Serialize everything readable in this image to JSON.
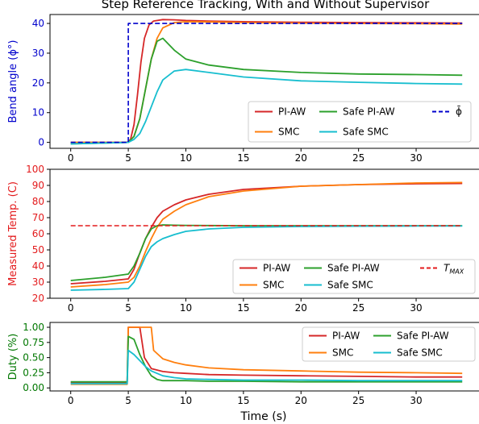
{
  "figure": {
    "title": "Step Reference Tracking, With and Without Supervisor",
    "xlabel": "Time (s)"
  },
  "colors": {
    "pi_aw": "#d62728",
    "smc": "#ff7f0e",
    "safe_pi_aw": "#2ca02c",
    "safe_smc": "#17becf",
    "reference": "#0000cc",
    "tmax": "#e31a1c",
    "ylabel_top": "#0000cc",
    "ylabel_mid": "#e31a1c",
    "ylabel_bot": "#007700"
  },
  "chart_data": [
    {
      "type": "line",
      "ylabel": "Bend angle (ϕ°)",
      "xlim": [
        -1.8,
        35.6
      ],
      "ylim": [
        -2,
        43
      ],
      "xticks": [
        0,
        5,
        10,
        15,
        20,
        25,
        30
      ],
      "yticks": [
        0,
        10,
        20,
        30,
        40
      ],
      "legend_position": "lower-right",
      "series": [
        {
          "name": "PI-AW",
          "color_key": "pi_aw",
          "style": "solid",
          "x": [
            0,
            4.9,
            5.2,
            5.5,
            5.8,
            6.1,
            6.4,
            6.8,
            7.2,
            8,
            9,
            10,
            12,
            15,
            20,
            25,
            30,
            34
          ],
          "y": [
            0,
            0,
            1,
            6,
            16,
            27,
            35,
            39.5,
            40.8,
            41.3,
            41.2,
            41.0,
            40.8,
            40.6,
            40.4,
            40.3,
            40.2,
            40.1
          ]
        },
        {
          "name": "SMC",
          "color_key": "smc",
          "style": "solid",
          "x": [
            0,
            5,
            5.5,
            6,
            6.5,
            7,
            7.5,
            8,
            9,
            10,
            12,
            15,
            20,
            25,
            30,
            34
          ],
          "y": [
            0,
            0,
            2,
            8,
            18,
            28,
            35,
            38.5,
            40.3,
            40.6,
            40.5,
            40.3,
            40.1,
            40.0,
            39.9,
            39.8
          ]
        },
        {
          "name": "Safe PI-AW",
          "color_key": "safe_pi_aw",
          "style": "solid",
          "x": [
            0,
            5,
            5.5,
            6,
            6.5,
            7,
            7.5,
            8,
            9,
            10,
            12,
            15,
            20,
            25,
            30,
            34
          ],
          "y": [
            -0.5,
            0,
            2,
            8,
            18,
            28,
            34,
            35,
            31,
            28,
            26,
            24.5,
            23.5,
            23,
            22.8,
            22.6
          ]
        },
        {
          "name": "Safe SMC",
          "color_key": "safe_smc",
          "style": "solid",
          "x": [
            0,
            5,
            5.5,
            6,
            6.5,
            7,
            7.5,
            8,
            9,
            10,
            12,
            15,
            20,
            25,
            30,
            34
          ],
          "y": [
            -0.5,
            0,
            1,
            3,
            7,
            12,
            17,
            21,
            24,
            24.5,
            23.5,
            22,
            20.7,
            20.2,
            19.8,
            19.6
          ]
        },
        {
          "name": "ϕ̄",
          "color_key": "reference",
          "style": "dashed",
          "x": [
            0,
            5,
            5,
            34
          ],
          "y": [
            0,
            0,
            40,
            40
          ]
        }
      ]
    },
    {
      "type": "line",
      "ylabel": "Measured Temp. (C)",
      "xlim": [
        -1.8,
        35.6
      ],
      "ylim": [
        20,
        100
      ],
      "xticks": [
        0,
        5,
        10,
        15,
        20,
        25,
        30
      ],
      "yticks": [
        20,
        30,
        40,
        50,
        60,
        70,
        80,
        90,
        100
      ],
      "legend_position": "lower-right",
      "series": [
        {
          "name": "PI-AW",
          "color_key": "pi_aw",
          "style": "solid",
          "x": [
            0,
            3,
            5,
            5.5,
            6,
            6.5,
            7,
            7.5,
            8,
            9,
            10,
            12,
            15,
            20,
            25,
            30,
            34
          ],
          "y": [
            29,
            30.5,
            32,
            38,
            48,
            57,
            64,
            70,
            74,
            78,
            81,
            84.5,
            87.5,
            89.5,
            90.5,
            91,
            91.2
          ]
        },
        {
          "name": "SMC",
          "color_key": "smc",
          "style": "solid",
          "x": [
            0,
            3,
            5,
            5.5,
            6,
            6.5,
            7,
            7.5,
            8,
            9,
            10,
            12,
            15,
            20,
            25,
            30,
            34
          ],
          "y": [
            27,
            28.5,
            30,
            33,
            40,
            49,
            57,
            64,
            69,
            74,
            78,
            83,
            86.5,
            89.5,
            90.5,
            91.5,
            91.8
          ]
        },
        {
          "name": "Safe PI-AW",
          "color_key": "safe_pi_aw",
          "style": "solid",
          "x": [
            0,
            3,
            5,
            5.5,
            6,
            6.5,
            7,
            7.5,
            8,
            9,
            10,
            12,
            15,
            20,
            25,
            30,
            34
          ],
          "y": [
            31,
            33,
            35,
            40,
            48,
            57,
            63,
            65,
            65.5,
            65.3,
            65.2,
            65.1,
            65,
            65,
            65,
            65,
            65
          ]
        },
        {
          "name": "Safe SMC",
          "color_key": "safe_smc",
          "style": "solid",
          "x": [
            0,
            3,
            5,
            5.5,
            6,
            6.5,
            7,
            7.5,
            8,
            9,
            10,
            12,
            15,
            20,
            25,
            30,
            34
          ],
          "y": [
            25,
            25.5,
            26,
            30,
            38,
            46,
            52,
            55,
            57,
            59.5,
            61.5,
            63,
            64,
            64.5,
            64.7,
            64.8,
            64.8
          ]
        },
        {
          "name": "T_MAX",
          "color_key": "tmax",
          "style": "dashed",
          "x": [
            0,
            34
          ],
          "y": [
            65,
            65
          ]
        }
      ]
    },
    {
      "type": "line",
      "ylabel": "Duty (%)",
      "xlim": [
        -1.8,
        35.6
      ],
      "ylim": [
        -0.05,
        1.08
      ],
      "xticks": [
        0,
        5,
        10,
        15,
        20,
        25,
        30
      ],
      "yticks": [
        0.0,
        0.25,
        0.5,
        0.75,
        1.0
      ],
      "ytick_labels": [
        "0.00",
        "0.25",
        "0.50",
        "0.75",
        "1.00"
      ],
      "legend_position": "upper-right",
      "series": [
        {
          "name": "PI-AW",
          "color_key": "pi_aw",
          "style": "solid",
          "x": [
            0,
            4.9,
            5,
            6,
            6.4,
            7,
            8,
            9,
            10,
            12,
            15,
            20,
            25,
            30,
            34
          ],
          "y": [
            0.09,
            0.09,
            1.0,
            1.0,
            0.5,
            0.32,
            0.27,
            0.25,
            0.24,
            0.22,
            0.21,
            0.2,
            0.19,
            0.18,
            0.18
          ]
        },
        {
          "name": "SMC",
          "color_key": "smc",
          "style": "solid",
          "x": [
            0,
            4.9,
            5,
            7,
            7.2,
            7.6,
            8,
            9,
            10,
            12,
            15,
            20,
            25,
            30,
            34
          ],
          "y": [
            0.06,
            0.06,
            1.0,
            1.0,
            0.62,
            0.55,
            0.48,
            0.42,
            0.38,
            0.33,
            0.3,
            0.28,
            0.26,
            0.25,
            0.24
          ]
        },
        {
          "name": "Safe PI-AW",
          "color_key": "safe_pi_aw",
          "style": "solid",
          "x": [
            0,
            4.9,
            5,
            5.5,
            6,
            6.5,
            7,
            7.5,
            8,
            9,
            10,
            12,
            15,
            20,
            25,
            30,
            34
          ],
          "y": [
            0.1,
            0.1,
            0.85,
            0.8,
            0.55,
            0.35,
            0.2,
            0.14,
            0.12,
            0.12,
            0.12,
            0.11,
            0.11,
            0.1,
            0.1,
            0.1,
            0.1
          ]
        },
        {
          "name": "Safe SMC",
          "color_key": "safe_smc",
          "style": "solid",
          "x": [
            0,
            4.9,
            5,
            5.5,
            6,
            6.5,
            7,
            8,
            9,
            10,
            12,
            15,
            20,
            25,
            30,
            34
          ],
          "y": [
            0.07,
            0.07,
            0.62,
            0.55,
            0.45,
            0.35,
            0.28,
            0.2,
            0.17,
            0.15,
            0.14,
            0.13,
            0.13,
            0.12,
            0.12,
            0.12
          ]
        }
      ]
    }
  ]
}
